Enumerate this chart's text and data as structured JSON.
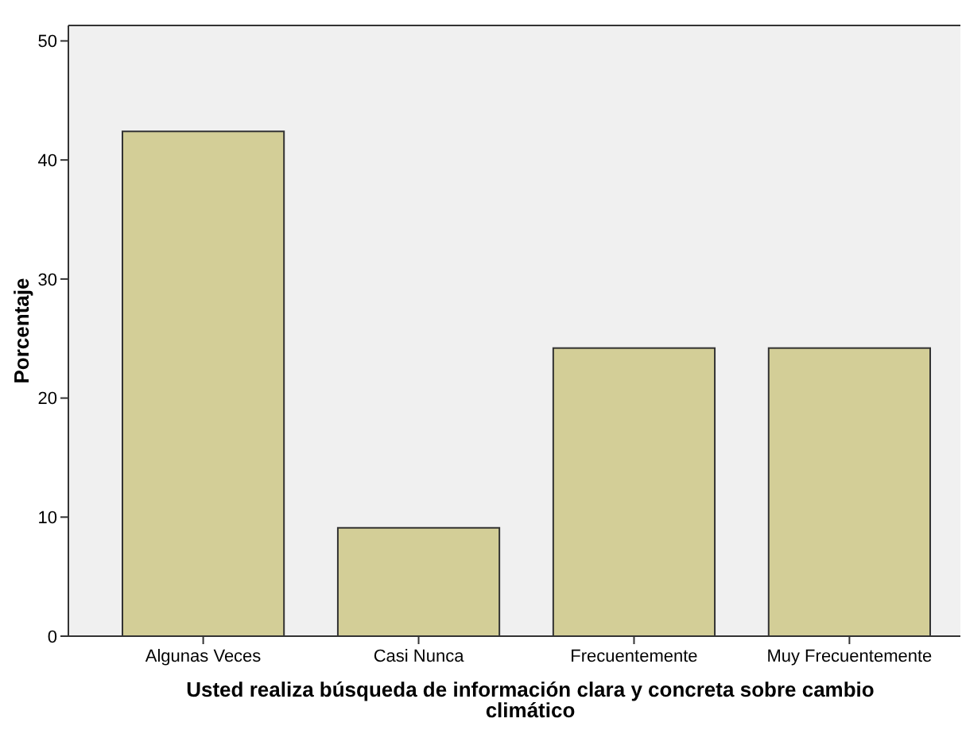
{
  "chart_data": {
    "type": "bar",
    "xlabel": "Usted realiza búsqueda de información clara y concreta  sobre cambio climático",
    "ylabel": "Porcentaje",
    "categories": [
      "Algunas Veces",
      "Casi Nunca",
      "Frecuentemente",
      "Muy Frecuentemente"
    ],
    "values": [
      42.4,
      9.1,
      24.2,
      24.2
    ],
    "color": "#d3ce97",
    "ylim": [
      0,
      51.3
    ],
    "yticks": [
      0,
      10,
      20,
      30,
      40,
      50
    ],
    "grid": false
  }
}
